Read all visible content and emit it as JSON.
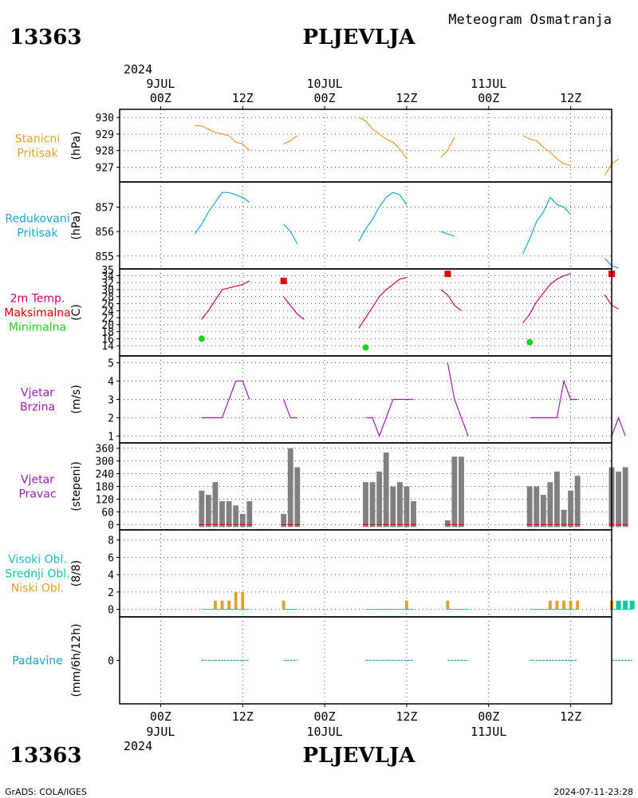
{
  "header": {
    "station_id": "13363",
    "station_name": "PLJEVLJA",
    "product_title": "Meteogram Osmatranja",
    "year": "2024",
    "days": [
      "9JUL",
      "10JUL",
      "11JUL"
    ],
    "top_hour_labels": [
      "00Z",
      "12Z",
      "00Z",
      "12Z",
      "00Z",
      "12Z"
    ],
    "bottom_hour_labels": [
      "00Z",
      "12Z",
      "00Z",
      "12Z",
      "00Z",
      "12Z"
    ]
  },
  "footer": {
    "station_id": "13363",
    "station_name": "PLJEVLJA",
    "credit": "GrADS: COLA/IGES",
    "timestamp": "2024-07-11-23:28"
  },
  "colors": {
    "pressure": "#e0a030",
    "reduced": "#1fa3d6",
    "temp": "#c8006e",
    "tmax": "#e00000",
    "tmin": "#20d020",
    "wind": "#9a1fb0",
    "bar": "#808080",
    "cloud_low": "#e0a030",
    "cloud_mid": "#10c8a0",
    "cloud_high": "#20b8c8",
    "precip": "#20a0c8"
  },
  "panels": [
    {
      "key": "station_pressure",
      "label_lines": [
        "Stanicni",
        "Pritisak"
      ],
      "label_colors": [
        "#e0a030",
        "#e0a030"
      ],
      "unit": "(hPa)"
    },
    {
      "key": "reduced_pressure",
      "label_lines": [
        "Redukovani",
        "Pritisak"
      ],
      "label_colors": [
        "#1fa3d6",
        "#1fa3d6"
      ],
      "unit": "(hPa)"
    },
    {
      "key": "temperature",
      "label_lines": [
        "2m Temp.",
        "Maksimalna",
        "Minimalna"
      ],
      "label_colors": [
        "#c8006e",
        "#e00000",
        "#20d020"
      ],
      "unit": "(C)"
    },
    {
      "key": "wind_speed",
      "label_lines": [
        "Vjetar",
        "Brzina"
      ],
      "label_colors": [
        "#9a1fb0",
        "#9a1fb0"
      ],
      "unit": "(m/s)"
    },
    {
      "key": "wind_direction",
      "label_lines": [
        "Vjetar",
        "Pravac"
      ],
      "label_colors": [
        "#9a1fb0",
        "#9a1fb0"
      ],
      "unit": "(stepeni)"
    },
    {
      "key": "clouds",
      "label_lines": [
        "Visoki Obl.",
        "Srednji Obl.",
        "Niski Obl."
      ],
      "label_colors": [
        "#20b8c8",
        "#10c8a0",
        "#e0a030"
      ],
      "unit": "(8/8)"
    },
    {
      "key": "precipitation",
      "label_lines": [
        "Padavine"
      ],
      "label_colors": [
        "#20a0c8"
      ],
      "unit": "(mm/6h/12h)"
    }
  ],
  "chart_data": {
    "type": "line",
    "x_unit": "hours since 2024-07-09 00Z",
    "xlim": [
      -6,
      66
    ],
    "grid": true,
    "station_pressure": {
      "ylim": [
        926.3,
        930.3
      ],
      "ticks": [
        927,
        928,
        929,
        930
      ],
      "segments": [
        [
          [
            5,
            929.5
          ],
          [
            6,
            929.5
          ],
          [
            7,
            929.3
          ],
          [
            8,
            929.1
          ],
          [
            9,
            929
          ],
          [
            10,
            928.9
          ],
          [
            11,
            928.5
          ],
          [
            12,
            928.4
          ],
          [
            13,
            928
          ]
        ],
        [
          [
            18,
            928.4
          ],
          [
            19,
            928.6
          ],
          [
            20,
            928.9
          ]
        ],
        [
          [
            29,
            930
          ],
          [
            30,
            929.8
          ],
          [
            31,
            929.3
          ],
          [
            32,
            929
          ],
          [
            33,
            928.7
          ],
          [
            34,
            928.5
          ],
          [
            35,
            928.1
          ],
          [
            36,
            927.5
          ]
        ],
        [
          [
            41,
            927.6
          ],
          [
            42,
            928
          ],
          [
            43,
            928.8
          ]
        ],
        [
          [
            53,
            928.9
          ],
          [
            54,
            928.7
          ],
          [
            55,
            928.6
          ],
          [
            56,
            928.2
          ],
          [
            57,
            927.9
          ],
          [
            58,
            927.5
          ],
          [
            59,
            927.2
          ],
          [
            60,
            927.1
          ]
        ],
        [
          [
            65,
            926.5
          ],
          [
            66,
            927.2
          ],
          [
            67,
            927.5
          ]
        ]
      ]
    },
    "reduced_pressure": {
      "ylim": [
        854.6,
        857.9
      ],
      "ticks": [
        855,
        856,
        857
      ],
      "segments": [
        [
          [
            5,
            855.9
          ],
          [
            6,
            856.3
          ],
          [
            7,
            856.8
          ],
          [
            8,
            857.2
          ],
          [
            9,
            857.6
          ],
          [
            10,
            857.6
          ],
          [
            11,
            857.5
          ],
          [
            12,
            857.4
          ],
          [
            13,
            857.2
          ]
        ],
        [
          [
            18,
            856.3
          ],
          [
            19,
            856
          ],
          [
            20,
            855.5
          ]
        ],
        [
          [
            29,
            855.6
          ],
          [
            30,
            856.1
          ],
          [
            31,
            856.5
          ],
          [
            32,
            857
          ],
          [
            33,
            857.4
          ],
          [
            34,
            857.6
          ],
          [
            35,
            857.5
          ],
          [
            36,
            857.1
          ]
        ],
        [
          [
            41,
            856
          ],
          [
            42,
            855.9
          ],
          [
            43,
            855.8
          ]
        ],
        [
          [
            53,
            855.1
          ],
          [
            54,
            855.7
          ],
          [
            55,
            856.4
          ],
          [
            56,
            856.8
          ],
          [
            57,
            857.4
          ],
          [
            58,
            857.1
          ],
          [
            59,
            857
          ],
          [
            60,
            856.7
          ]
        ],
        [
          [
            65,
            854.9
          ],
          [
            66,
            854.6
          ],
          [
            67,
            854.5
          ]
        ]
      ]
    },
    "temperature": {
      "ylim": [
        12,
        35
      ],
      "ticks": [
        14,
        16,
        18,
        20,
        22,
        24,
        26,
        28,
        30,
        32,
        34
      ],
      "top_label": "35",
      "segments": [
        [
          [
            6,
            21.5
          ],
          [
            7,
            24
          ],
          [
            8,
            27
          ],
          [
            9,
            30
          ],
          [
            10,
            30.5
          ],
          [
            11,
            31
          ],
          [
            12,
            31.5
          ],
          [
            13,
            32.5
          ]
        ],
        [
          [
            18,
            28
          ],
          [
            19,
            25.5
          ],
          [
            20,
            23
          ],
          [
            21,
            21.5
          ]
        ],
        [
          [
            29,
            19
          ],
          [
            30,
            22
          ],
          [
            31,
            25
          ],
          [
            32,
            28
          ],
          [
            33,
            30
          ],
          [
            34,
            31.5
          ],
          [
            35,
            33
          ],
          [
            36,
            33.5
          ]
        ],
        [
          [
            41,
            30
          ],
          [
            42,
            28.5
          ],
          [
            43,
            25.5
          ],
          [
            44,
            24
          ]
        ],
        [
          [
            53,
            20.5
          ],
          [
            54,
            23
          ],
          [
            55,
            26.5
          ],
          [
            56,
            29
          ],
          [
            57,
            31.5
          ],
          [
            58,
            33
          ],
          [
            59,
            34
          ],
          [
            60,
            34.5
          ]
        ],
        [
          [
            65,
            28.5
          ],
          [
            66,
            25.5
          ],
          [
            67,
            24.5
          ]
        ]
      ],
      "tmax": [
        [
          18,
          32.5
        ],
        [
          42,
          34.5
        ],
        [
          66,
          34.5
        ]
      ],
      "tmin": [
        [
          6,
          16
        ],
        [
          30,
          13.5
        ],
        [
          54,
          15
        ]
      ]
    },
    "wind_speed": {
      "ylim": [
        0.8,
        5.2
      ],
      "ticks": [
        1,
        2,
        3,
        4,
        5
      ],
      "segments": [
        [
          [
            6,
            2
          ],
          [
            7,
            2
          ],
          [
            8,
            2
          ],
          [
            9,
            2
          ],
          [
            10,
            3
          ],
          [
            11,
            4
          ],
          [
            12,
            4
          ],
          [
            13,
            3
          ]
        ],
        [
          [
            18,
            3
          ],
          [
            19,
            2
          ],
          [
            20,
            2
          ]
        ],
        [
          [
            30,
            2
          ],
          [
            31,
            2
          ],
          [
            32,
            1
          ],
          [
            33,
            2
          ],
          [
            34,
            3
          ],
          [
            35,
            3
          ],
          [
            36,
            3
          ],
          [
            37,
            3
          ]
        ],
        [
          [
            42,
            5
          ],
          [
            43,
            3
          ],
          [
            44,
            2
          ],
          [
            45,
            1
          ]
        ],
        [
          [
            54,
            2
          ],
          [
            55,
            2
          ],
          [
            56,
            2
          ],
          [
            57,
            2
          ],
          [
            58,
            2
          ],
          [
            59,
            4
          ],
          [
            60,
            3
          ],
          [
            61,
            3
          ]
        ],
        [
          [
            66,
            1
          ],
          [
            67,
            2
          ],
          [
            68,
            1
          ]
        ]
      ]
    },
    "wind_direction": {
      "ylim": [
        -10,
        370
      ],
      "ticks": [
        0,
        60,
        120,
        180,
        240,
        300,
        360
      ],
      "bars": [
        [
          6,
          160
        ],
        [
          7,
          140
        ],
        [
          8,
          200
        ],
        [
          9,
          110
        ],
        [
          10,
          110
        ],
        [
          11,
          90
        ],
        [
          12,
          50
        ],
        [
          13,
          110
        ],
        [
          18,
          50
        ],
        [
          19,
          360
        ],
        [
          20,
          270
        ],
        [
          30,
          200
        ],
        [
          31,
          200
        ],
        [
          32,
          250
        ],
        [
          33,
          340
        ],
        [
          34,
          180
        ],
        [
          35,
          200
        ],
        [
          36,
          180
        ],
        [
          37,
          110
        ],
        [
          42,
          20
        ],
        [
          43,
          320
        ],
        [
          44,
          320
        ],
        [
          54,
          180
        ],
        [
          55,
          180
        ],
        [
          56,
          140
        ],
        [
          57,
          200
        ],
        [
          58,
          250
        ],
        [
          59,
          70
        ],
        [
          60,
          160
        ],
        [
          61,
          230
        ],
        [
          66,
          270
        ],
        [
          67,
          250
        ],
        [
          68,
          270
        ]
      ]
    },
    "clouds": {
      "ylim": [
        -0.5,
        8.8
      ],
      "ticks": [
        0,
        2,
        4,
        6,
        8
      ],
      "low": [
        [
          8,
          1
        ],
        [
          9,
          1
        ],
        [
          10,
          1
        ],
        [
          11,
          2
        ],
        [
          12,
          2
        ],
        [
          18,
          1
        ],
        [
          36,
          1
        ],
        [
          42,
          1
        ],
        [
          57,
          1
        ],
        [
          58,
          1
        ],
        [
          59,
          1
        ],
        [
          60,
          1
        ],
        [
          61,
          1
        ],
        [
          66,
          1
        ]
      ],
      "mid": [
        [
          67,
          1
        ],
        [
          68,
          1
        ],
        [
          69,
          1
        ]
      ],
      "high": []
    },
    "precipitation": {
      "ylim": [
        -3,
        3
      ],
      "ticks": [
        0
      ],
      "segments": [
        [
          6,
          13
        ],
        [
          18,
          20
        ],
        [
          30,
          37
        ],
        [
          42,
          45
        ],
        [
          54,
          61
        ],
        [
          66,
          69
        ]
      ]
    }
  }
}
